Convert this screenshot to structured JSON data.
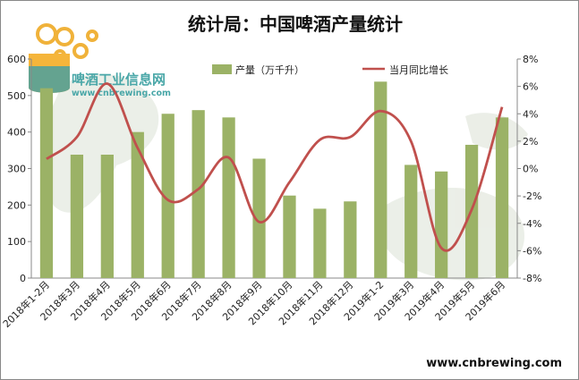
{
  "chart_data": {
    "type": "bar",
    "title": "统计局：中国啤酒产量统计",
    "categories": [
      "2018年1-2月",
      "2018年3月",
      "2018年4月",
      "2018年5月",
      "2018年6月",
      "2018年7月",
      "2018年8月",
      "2018年9月",
      "2018年10月",
      "2018年11月",
      "2018年12月",
      "2019年1-2",
      "2019年3月",
      "2019年4月",
      "2019年5月",
      "2019年6月"
    ],
    "series": [
      {
        "name": "产量（万千升）",
        "type": "bar",
        "axis": "left",
        "color": "#9bb266",
        "values": [
          520,
          338,
          338,
          400,
          450,
          460,
          440,
          327,
          226,
          190,
          210,
          538,
          310,
          292,
          365,
          440
        ]
      },
      {
        "name": "当月同比增长",
        "type": "line",
        "axis": "right",
        "color": "#c0504d",
        "values": [
          0.7,
          2.3,
          6.2,
          1.5,
          -2.3,
          -1.5,
          0.8,
          -3.9,
          -1.0,
          2.1,
          2.3,
          4.2,
          2.0,
          -5.8,
          -3.0,
          4.5
        ]
      }
    ],
    "ylim_left": [
      0,
      600
    ],
    "yticks_left": [
      "0",
      "100",
      "200",
      "300",
      "400",
      "500",
      "600"
    ],
    "ylim_right": [
      -8,
      8
    ],
    "yticks_right": [
      "-8%",
      "-6%",
      "-4%",
      "-2%",
      "0%",
      "2%",
      "4%",
      "6%",
      "8%"
    ],
    "legend_position": "top"
  },
  "watermark": {
    "logo_text": "啤酒工业信息网",
    "logo_url": "www.cnbrewing.com"
  },
  "footer_url": "www.cnbrewing.com"
}
